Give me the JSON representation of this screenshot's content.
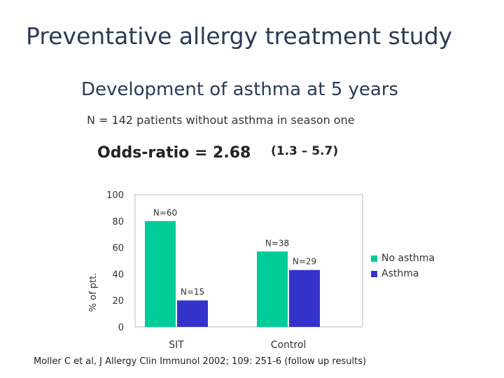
{
  "slide": {
    "title": "Preventative allergy treatment study",
    "subtitle": "Development of asthma at 5 years",
    "subheading": "N = 142 patients without asthma in season one",
    "odds_label": "Odds-ratio = 2.68",
    "odds_ci": "(1.3 – 5.7)",
    "citation": "Moller C et al, J Allergy Clin Immunol 2002; 109: 251-6  (follow up results)"
  },
  "colors": {
    "no_asthma": "#00cc99",
    "asthma": "#3333cc"
  },
  "chart_data": {
    "type": "bar",
    "title": "",
    "xlabel": "",
    "ylabel": "% of ptt.",
    "ylim": [
      0,
      100
    ],
    "yticks": [
      "0",
      "20",
      "40",
      "60",
      "80",
      "100"
    ],
    "categories": [
      "SIT",
      "Control"
    ],
    "series": [
      {
        "name": "No asthma",
        "values": [
          80,
          57
        ],
        "labels": [
          "N=60",
          "N=38"
        ]
      },
      {
        "name": "Asthma",
        "values": [
          20,
          43
        ],
        "labels": [
          "N=15",
          "N=29"
        ]
      }
    ],
    "legend_position": "right"
  }
}
